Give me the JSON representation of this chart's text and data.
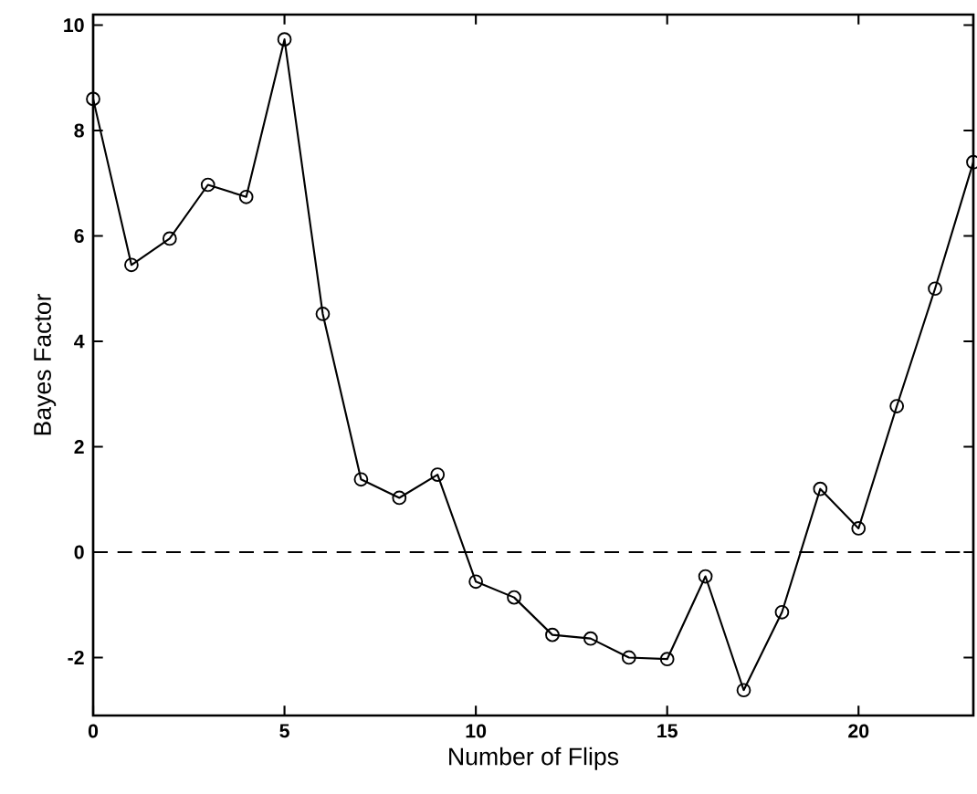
{
  "chart_data": {
    "type": "line",
    "xlabel": "Number of Flips",
    "ylabel": "Bayes Factor",
    "x": [
      0,
      1,
      2,
      3,
      4,
      5,
      6,
      7,
      8,
      9,
      10,
      11,
      12,
      13,
      14,
      15,
      16,
      17,
      18,
      19,
      20,
      21,
      22,
      23
    ],
    "series": [
      {
        "color": "#000000",
        "values": [
          8.6,
          5.45,
          5.95,
          6.97,
          6.74,
          9.73,
          4.52,
          1.38,
          1.03,
          1.47,
          -0.56,
          -0.86,
          -1.57,
          -1.64,
          -2.0,
          -2.03,
          -0.46,
          -2.62,
          -1.14,
          1.2,
          0.45,
          2.77,
          5.0,
          7.4
        ]
      }
    ],
    "xlim": [
      0,
      23
    ],
    "ylim": [
      -3.1,
      10.2
    ],
    "xticks": [
      0,
      5,
      10,
      15,
      20
    ],
    "yticks": [
      -2,
      0,
      2,
      4,
      6,
      8,
      10
    ],
    "ref_lines": [
      {
        "axis": "y",
        "value": 0,
        "line_style": "dashed"
      }
    ],
    "marker": "circle",
    "line_style": "solid",
    "grid": false
  }
}
